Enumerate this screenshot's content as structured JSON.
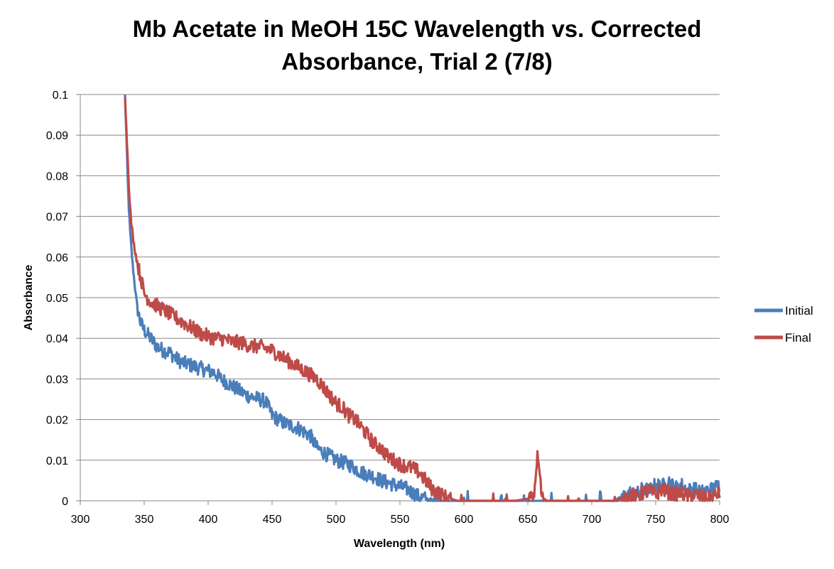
{
  "chart_data": {
    "type": "line",
    "title_line1": "Mb Acetate in MeOH 15C Wavelength vs. Corrected",
    "title_line2": "Absorbance, Trial 2 (7/8)",
    "xlabel": "Wavelength (nm)",
    "ylabel": "Absorbance",
    "xlim": [
      300,
      800
    ],
    "ylim": [
      0,
      0.1
    ],
    "x_ticks": [
      "300",
      "350",
      "400",
      "450",
      "500",
      "550",
      "600",
      "650",
      "700",
      "750",
      "800"
    ],
    "y_ticks": [
      "0",
      "0.01",
      "0.02",
      "0.03",
      "0.04",
      "0.05",
      "0.06",
      "0.07",
      "0.08",
      "0.09",
      "0.1"
    ],
    "grid": "horizontal",
    "legend_position": "right",
    "series": [
      {
        "name": "Initial",
        "color": "#4a7ebb",
        "x": [
          335,
          336,
          337,
          338,
          339,
          340,
          341,
          342,
          343,
          344,
          345,
          347,
          350,
          355,
          360,
          365,
          370,
          375,
          380,
          385,
          390,
          395,
          400,
          405,
          410,
          415,
          420,
          425,
          430,
          435,
          440,
          445,
          450,
          455,
          460,
          465,
          470,
          475,
          480,
          485,
          490,
          495,
          500,
          505,
          510,
          515,
          520,
          525,
          530,
          535,
          540,
          545,
          550,
          555,
          560,
          565,
          570,
          575,
          580,
          600,
          620,
          640,
          660,
          680,
          700,
          710,
          720,
          725,
          730,
          735,
          740,
          745,
          750,
          755,
          760,
          765,
          770,
          775,
          780,
          785,
          790,
          795,
          800
        ],
        "y": [
          0.1,
          0.09,
          0.08,
          0.072,
          0.066,
          0.062,
          0.058,
          0.055,
          0.052,
          0.049,
          0.047,
          0.044,
          0.042,
          0.04,
          0.038,
          0.037,
          0.0365,
          0.035,
          0.034,
          0.0335,
          0.033,
          0.0325,
          0.032,
          0.0315,
          0.03,
          0.029,
          0.028,
          0.027,
          0.026,
          0.0255,
          0.025,
          0.0245,
          0.021,
          0.02,
          0.019,
          0.0185,
          0.018,
          0.017,
          0.016,
          0.013,
          0.012,
          0.011,
          0.01,
          0.0095,
          0.009,
          0.008,
          0.007,
          0.0065,
          0.006,
          0.005,
          0.0045,
          0.004,
          0.0035,
          0.003,
          0.002,
          0.001,
          0.0005,
          0,
          0,
          0,
          0,
          0,
          0,
          0,
          0,
          0,
          0,
          0.001,
          0.002,
          0.0015,
          0.003,
          0.0025,
          0.004,
          0.0035,
          0.005,
          0.003,
          0.004,
          0.0025,
          0.003,
          0.002,
          0.0025,
          0.003,
          0.004
        ]
      },
      {
        "name": "Final",
        "color": "#be4b48",
        "x": [
          335,
          336,
          337,
          338,
          339,
          340,
          342,
          345,
          348,
          350,
          355,
          360,
          365,
          370,
          375,
          380,
          385,
          390,
          395,
          400,
          405,
          410,
          415,
          420,
          425,
          430,
          435,
          440,
          445,
          450,
          455,
          460,
          465,
          470,
          475,
          480,
          485,
          490,
          495,
          500,
          505,
          510,
          515,
          520,
          525,
          530,
          535,
          540,
          545,
          550,
          555,
          560,
          565,
          570,
          575,
          580,
          585,
          590,
          595,
          600,
          610,
          620,
          630,
          640,
          650,
          655,
          657,
          658,
          659,
          661,
          665,
          680,
          700,
          720,
          725,
          730,
          735,
          740,
          745,
          750,
          755,
          760,
          765,
          770,
          775,
          780,
          785,
          790,
          795,
          800
        ],
        "y": [
          0.1,
          0.092,
          0.085,
          0.078,
          0.072,
          0.068,
          0.063,
          0.058,
          0.054,
          0.051,
          0.049,
          0.048,
          0.047,
          0.046,
          0.045,
          0.044,
          0.043,
          0.042,
          0.041,
          0.0405,
          0.04,
          0.04,
          0.0395,
          0.039,
          0.039,
          0.0385,
          0.038,
          0.038,
          0.0375,
          0.037,
          0.036,
          0.035,
          0.034,
          0.033,
          0.032,
          0.031,
          0.03,
          0.028,
          0.026,
          0.024,
          0.023,
          0.021,
          0.02,
          0.018,
          0.016,
          0.014,
          0.013,
          0.011,
          0.01,
          0.009,
          0.0085,
          0.008,
          0.007,
          0.005,
          0.003,
          0.002,
          0.001,
          0.0005,
          0,
          0,
          0,
          0,
          0,
          0,
          0.0005,
          0.002,
          0.01,
          0.0115,
          0.009,
          0.001,
          0,
          0,
          0,
          0,
          0.0005,
          0.0015,
          0.001,
          0.002,
          0.0025,
          0.0015,
          0.003,
          0.002,
          0.0015,
          0.002,
          0.001,
          0.0015,
          0.001,
          0.0005,
          0.001,
          0.002
        ]
      }
    ]
  }
}
